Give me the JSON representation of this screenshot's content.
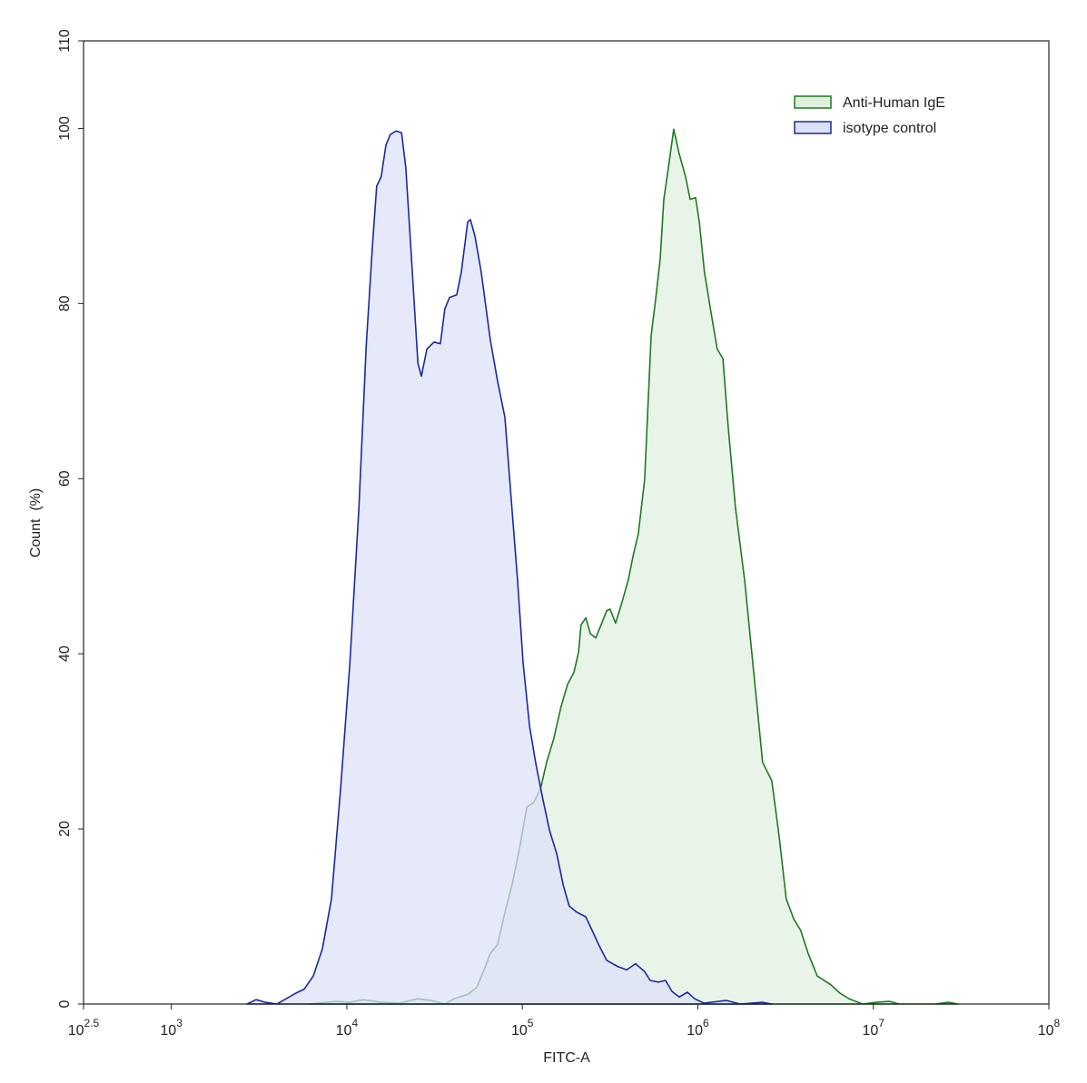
{
  "chart_data": {
    "type": "area",
    "xscale": "log",
    "x_label": "FITC-A",
    "y_label": "Count  (%)",
    "xlim": [
      316.23,
      100000000
    ],
    "ylim": [
      0,
      110
    ],
    "xticks": [
      {
        "value": 316.23,
        "label": "10",
        "exponent": "2.5"
      },
      {
        "value": 1000,
        "label": "10",
        "exponent": "3"
      },
      {
        "value": 10000,
        "label": "10",
        "exponent": "4"
      },
      {
        "value": 100000,
        "label": "10",
        "exponent": "5"
      },
      {
        "value": 1000000,
        "label": "10",
        "exponent": "6"
      },
      {
        "value": 10000000,
        "label": "10",
        "exponent": "7"
      },
      {
        "value": 100000000,
        "label": "10",
        "exponent": "8"
      }
    ],
    "yticks": [
      0,
      20,
      40,
      60,
      80,
      100,
      110
    ],
    "legend": "upper right",
    "series": [
      {
        "name": "Anti-Human IgE",
        "color": "#1f7a1f",
        "fill": "#dff0df",
        "x": [
          6070,
          8670,
          10400,
          12400,
          15700,
          20000,
          25400,
          30300,
          36200,
          40800,
          48800,
          55000,
          60500,
          65800,
          72300,
          78500,
          88500,
          97400,
          106000,
          116000,
          127000,
          138000,
          151000,
          166000,
          181000,
          197000,
          209000,
          216000,
          230000,
          244000,
          262000,
          281000,
          302000,
          316000,
          340000,
          370000,
          402000,
          427000,
          458000,
          498000,
          542000,
          574000,
          610000,
          640000,
          679000,
          729000,
          783000,
          851000,
          904000,
          971000,
          1020000,
          1090000,
          1190000,
          1290000,
          1390000,
          1490000,
          1640000,
          1850000,
          2080000,
          2340000,
          2640000,
          2900000,
          3190000,
          3520000,
          3860000,
          4250000,
          4790000,
          5730000,
          6450000,
          7270000,
          8690000,
          10400000,
          12400000,
          14000000,
          22500000,
          26900000,
          30300000
        ],
        "values": [
          0,
          0.3,
          0.2,
          0.5,
          0.2,
          0.1,
          0.6,
          0.4,
          0,
          0.6,
          1.1,
          1.9,
          3.9,
          5.8,
          6.8,
          10.0,
          14.1,
          18.3,
          22.5,
          23.0,
          24.6,
          27.7,
          30.3,
          33.9,
          36.5,
          37.9,
          40.2,
          43.3,
          44.1,
          42.3,
          41.8,
          43.3,
          44.9,
          45.1,
          43.5,
          45.9,
          48.5,
          51.1,
          53.7,
          59.9,
          76.3,
          80.4,
          85.1,
          91.9,
          95.5,
          99.9,
          97.1,
          94.5,
          91.9,
          92.1,
          89.3,
          83.6,
          78.9,
          74.8,
          73.7,
          65.9,
          56.6,
          48.3,
          38.0,
          27.6,
          25.5,
          19.3,
          12.0,
          9.7,
          8.4,
          5.8,
          3.2,
          2.2,
          1.24,
          0.6,
          0,
          0.2,
          0.3,
          0,
          0,
          0.2,
          0
        ]
      },
      {
        "name": "isotype control",
        "color": "#1a2a9a",
        "fill": "#dcdff8",
        "x": [
          2700,
          3040,
          3430,
          4000,
          4510,
          5080,
          5720,
          6440,
          7260,
          8180,
          9210,
          10400,
          11700,
          12900,
          14000,
          14800,
          15700,
          16700,
          17700,
          19100,
          20500,
          21700,
          23100,
          25400,
          26600,
          28600,
          31400,
          34100,
          36200,
          38500,
          42300,
          44900,
          48800,
          50600,
          53700,
          58300,
          65800,
          72300,
          79600,
          86500,
          94000,
          101000,
          110000,
          119000,
          131000,
          143000,
          157000,
          171000,
          185000,
          204000,
          230000,
          250000,
          275000,
          302000,
          348000,
          393000,
          442000,
          498000,
          535000,
          595000,
          655000,
          712000,
          783000,
          872000,
          959000,
          1080000,
          1460000,
          1740000,
          2340000,
          2640000
        ],
        "values": [
          0,
          0.5,
          0.2,
          0,
          0.6,
          1.2,
          1.7,
          3.2,
          6.3,
          12.0,
          24.5,
          38.8,
          56.4,
          75.2,
          86.7,
          93.4,
          94.5,
          98.1,
          99.3,
          99.7,
          99.5,
          95.5,
          86.7,
          73.2,
          71.7,
          74.8,
          75.6,
          75.4,
          79.4,
          80.7,
          81.0,
          83.6,
          89.3,
          89.6,
          87.7,
          83.6,
          75.8,
          71.1,
          67.0,
          57.6,
          48.3,
          39.0,
          31.7,
          27.6,
          23.4,
          19.8,
          17.2,
          13.6,
          11.2,
          10.5,
          9.95,
          8.4,
          6.6,
          5.0,
          4.3,
          3.9,
          4.6,
          3.7,
          2.7,
          2.5,
          2.7,
          1.45,
          0.8,
          1.35,
          0.6,
          0.1,
          0.4,
          0,
          0.2,
          0
        ]
      }
    ]
  }
}
